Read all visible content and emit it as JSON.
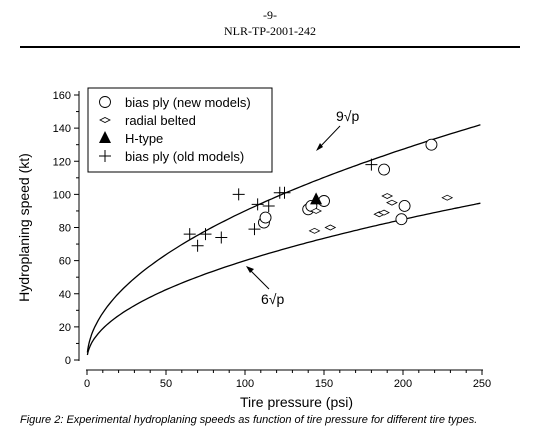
{
  "header": {
    "page_number": "-9-",
    "document_id": "NLR-TP-2001-242"
  },
  "caption": "Figure 2: Experimental hydroplaning speeds as function of tire pressure for different tire types.",
  "chart_data": {
    "type": "scatter",
    "title": "",
    "xlabel": "Tire pressure (psi)",
    "ylabel": "Hydroplaning speed (kt)",
    "xlim": [
      0,
      250
    ],
    "ylim": [
      0,
      160
    ],
    "xticks": [
      0,
      50,
      100,
      150,
      200,
      250
    ],
    "yticks": [
      0,
      20,
      40,
      60,
      80,
      100,
      120,
      140,
      160
    ],
    "legend_position": "top-left",
    "curves": [
      {
        "label": "9√p",
        "coefficient": 9
      },
      {
        "label": "6√p",
        "coefficient": 6
      }
    ],
    "series": [
      {
        "name": "bias ply (new models)",
        "marker": "circle",
        "points": [
          [
            112,
            83
          ],
          [
            113,
            86
          ],
          [
            140,
            91
          ],
          [
            142,
            93
          ],
          [
            150,
            96
          ],
          [
            188,
            115
          ],
          [
            199,
            85
          ],
          [
            201,
            93
          ],
          [
            218,
            130
          ]
        ]
      },
      {
        "name": "radial belted",
        "marker": "diamond",
        "points": [
          [
            144,
            78
          ],
          [
            145,
            90
          ],
          [
            154,
            80
          ],
          [
            185,
            88
          ],
          [
            188,
            89
          ],
          [
            190,
            99
          ],
          [
            193,
            95
          ],
          [
            228,
            98
          ]
        ]
      },
      {
        "name": "H-type",
        "marker": "triangle",
        "points": [
          [
            145,
            97
          ]
        ]
      },
      {
        "name": "bias ply (old models)",
        "marker": "plus",
        "points": [
          [
            65,
            76
          ],
          [
            70,
            69
          ],
          [
            75,
            76
          ],
          [
            85,
            74
          ],
          [
            96,
            100
          ],
          [
            106,
            79
          ],
          [
            108,
            94
          ],
          [
            115,
            93
          ],
          [
            122,
            101
          ],
          [
            125,
            101
          ],
          [
            180,
            118
          ]
        ]
      }
    ]
  }
}
